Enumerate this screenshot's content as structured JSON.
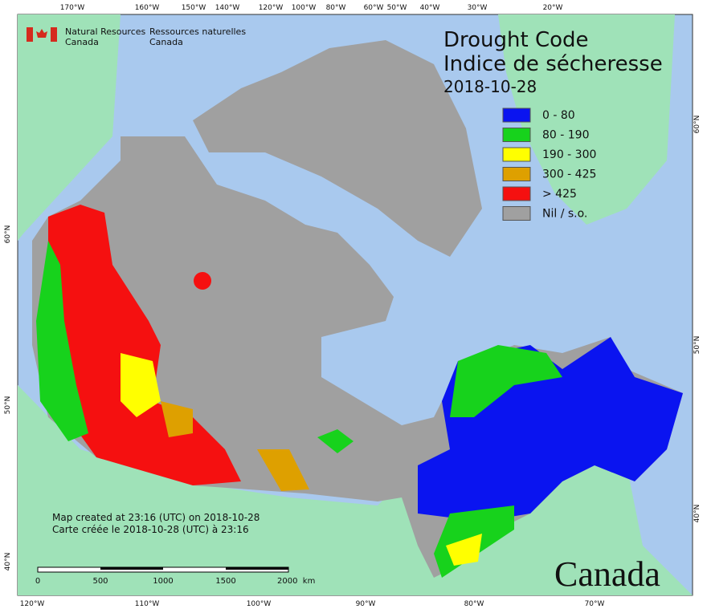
{
  "header": {
    "org_en": [
      "Natural Resources",
      "Canada"
    ],
    "org_fr": [
      "Ressources naturelles",
      "Canada"
    ]
  },
  "title": {
    "en": "Drought Code",
    "fr": "Indice de sécheresse",
    "date": "2018-10-28"
  },
  "legend": {
    "items": [
      {
        "label": "0 - 80",
        "color": "#0a14f0"
      },
      {
        "label": "80 - 190",
        "color": "#17d21c"
      },
      {
        "label": "190 - 300",
        "color": "#ffff00"
      },
      {
        "label": "300 - 425",
        "color": "#dea000"
      },
      {
        "label": "> 425",
        "color": "#f51010"
      },
      {
        "label": "Nil / s.o.",
        "color": "#a0a0a0"
      }
    ]
  },
  "footer": {
    "created_en": "Map created at 23:16 (UTC) on 2018-10-28",
    "created_fr": "Carte créée le 2018-10-28 (UTC) à 23:16"
  },
  "scale_bar": {
    "labels": [
      "0",
      "500",
      "1000",
      "1500",
      "2000  km"
    ]
  },
  "wordmark": "Canada",
  "graticule": {
    "top": [
      "170°W",
      "160°W",
      "150°W",
      "140°W",
      "120°W",
      "100°W",
      "80°W",
      "60°W",
      "50°W",
      "40°W",
      "30°W",
      "20°W"
    ],
    "bottom": [
      "120°W",
      "110°W",
      "100°W",
      "90°W",
      "80°W",
      "70°W"
    ],
    "left": [
      "60°N",
      "50°N",
      "40°N"
    ],
    "right": [
      "60°N",
      "50°N",
      "40°N"
    ]
  }
}
